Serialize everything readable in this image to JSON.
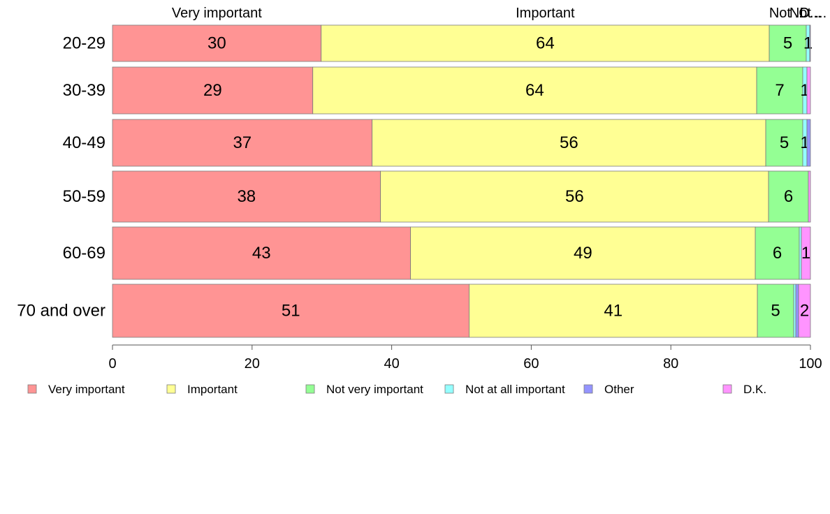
{
  "chart_data": {
    "type": "bar",
    "orientation": "horizontal",
    "stacked": true,
    "categories": [
      "20-29",
      "30-39",
      "40-49",
      "50-59",
      "60-69",
      "70 and over"
    ],
    "series": [
      {
        "name": "Very important",
        "color": "#FF9494",
        "values": [
          29.9,
          28.7,
          37.2,
          38.4,
          42.7,
          51.1
        ]
      },
      {
        "name": "Important",
        "color": "#FFFF94",
        "values": [
          64.2,
          63.6,
          56.4,
          55.6,
          49.4,
          41.3
        ]
      },
      {
        "name": "Not very important",
        "color": "#94FF94",
        "values": [
          5.3,
          6.6,
          5.3,
          5.7,
          6.3,
          5.2
        ]
      },
      {
        "name": "Not at all important",
        "color": "#94FFFF",
        "values": [
          0.5,
          0.6,
          0.6,
          0.0,
          0.3,
          0.3
        ]
      },
      {
        "name": "Other",
        "color": "#9494FF",
        "values": [
          0.1,
          0.0,
          0.5,
          0.0,
          0.0,
          0.4
        ]
      },
      {
        "name": "D.K.",
        "color": "#FF94FF",
        "values": [
          0.0,
          0.5,
          0.0,
          0.3,
          1.3,
          1.7
        ]
      }
    ],
    "value_labels": [
      [
        "30",
        "64",
        "5",
        "1",
        "",
        ""
      ],
      [
        "29",
        "64",
        "7",
        "1",
        "",
        ""
      ],
      [
        "37",
        "56",
        "5",
        "1",
        "",
        ""
      ],
      [
        "38",
        "56",
        "6",
        "",
        "",
        ""
      ],
      [
        "43",
        "49",
        "6",
        "",
        "",
        "1"
      ],
      [
        "51",
        "41",
        "5",
        "",
        "",
        "2"
      ]
    ],
    "top_labels": [
      "Very important",
      "Important",
      "Not ...",
      "Not ...",
      "O...",
      "D..."
    ],
    "xlim": [
      0,
      100
    ],
    "xticks": [
      0,
      20,
      40,
      60,
      80,
      100
    ],
    "legend_position": "bottom"
  }
}
